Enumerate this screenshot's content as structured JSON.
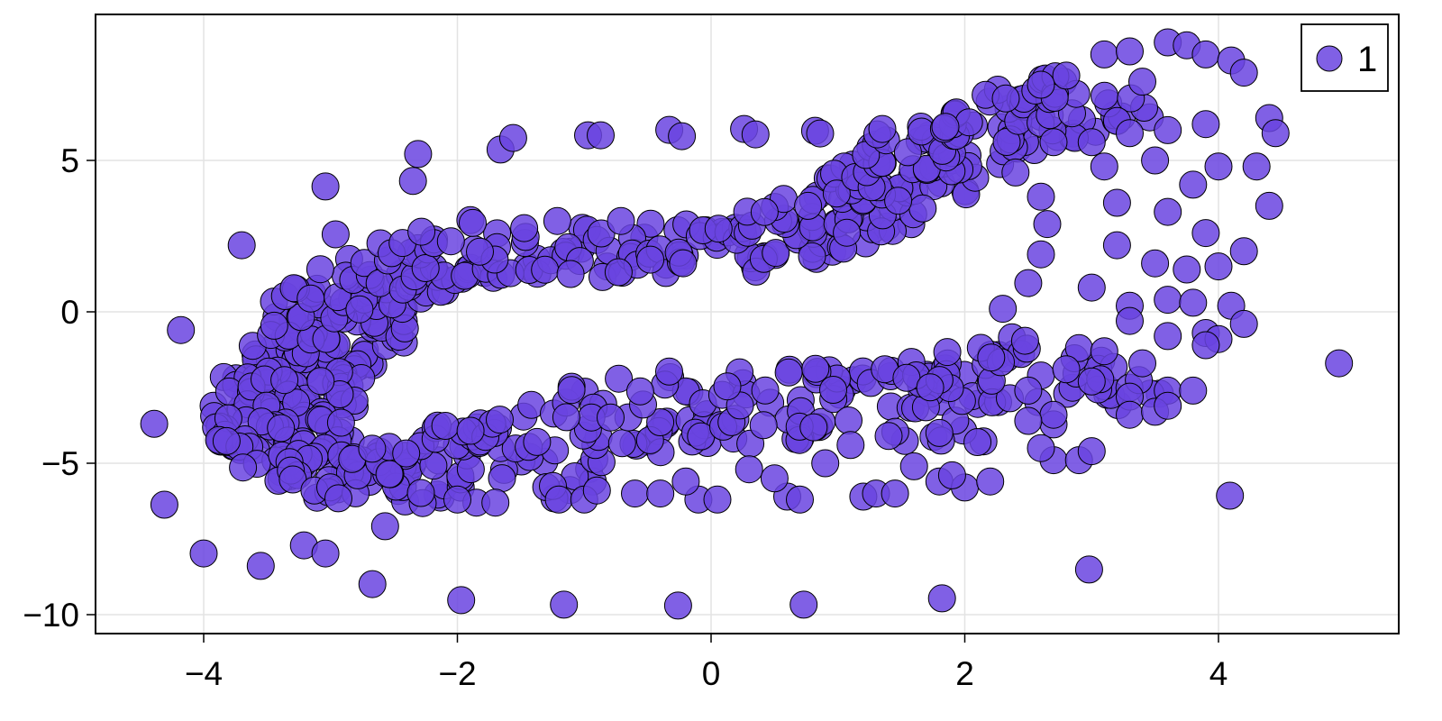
{
  "chart_data": {
    "type": "scatter",
    "title": "",
    "xlabel": "",
    "ylabel": "",
    "xlim": [
      -4.8,
      5.45
    ],
    "ylim": [
      -10.7,
      9.75
    ],
    "xticks": [
      -4,
      -2,
      0,
      2,
      4
    ],
    "xtick_labels": [
      "−4",
      "−2",
      "0",
      "2",
      "4"
    ],
    "yticks": [
      5,
      0,
      -5,
      -10
    ],
    "ytick_labels": [
      "5",
      "0",
      "−5",
      "−10"
    ],
    "grid": true,
    "legend": {
      "position": "top-right",
      "entries": [
        {
          "label": "1",
          "marker": "circle",
          "color": "#6a44e0"
        }
      ]
    },
    "marker": {
      "shape": "circle",
      "color": "#6a44e0",
      "alpha": 0.85,
      "stroke": "#000000",
      "radius_px": 15
    },
    "series": [
      {
        "name": "1",
        "outliers": [
          [
            -4.18,
            -0.6
          ],
          [
            -4.39,
            -3.7
          ],
          [
            -4.31,
            -6.37
          ],
          [
            -4.0,
            -7.98
          ],
          [
            -3.55,
            -8.39
          ],
          [
            -3.21,
            -7.71
          ],
          [
            -3.04,
            -7.98
          ],
          [
            -2.57,
            -7.08
          ],
          [
            -2.67,
            -8.99
          ],
          [
            -1.97,
            -9.52
          ],
          [
            -1.16,
            -9.67
          ],
          [
            -0.26,
            -9.7
          ],
          [
            0.73,
            -9.67
          ],
          [
            1.82,
            -9.46
          ],
          [
            2.98,
            -8.51
          ],
          [
            4.09,
            -6.07
          ],
          [
            4.95,
            -1.7
          ],
          [
            -3.7,
            2.2
          ],
          [
            -3.04,
            4.14
          ],
          [
            -2.96,
            2.56
          ],
          [
            -2.35,
            4.32
          ],
          [
            -2.31,
            5.21
          ],
          [
            -1.66,
            5.36
          ],
          [
            -1.56,
            5.74
          ],
          [
            -0.97,
            5.83
          ],
          [
            -0.87,
            5.83
          ],
          [
            -0.33,
            6.01
          ],
          [
            -0.23,
            5.8
          ],
          [
            0.26,
            6.04
          ],
          [
            0.35,
            5.86
          ],
          [
            0.82,
            5.98
          ],
          [
            0.86,
            5.89
          ],
          [
            1.31,
            5.86
          ],
          [
            1.35,
            6.04
          ]
        ],
        "upper_band": {
          "description": "dense band from left loop rising to upper right",
          "centerline": [
            [
              -3.0,
              -1.0
            ],
            [
              -2.9,
              0.2
            ],
            [
              -2.7,
              0.8
            ],
            [
              -2.4,
              1.4
            ],
            [
              -2.0,
              1.9
            ],
            [
              -1.5,
              2.2
            ],
            [
              -1.0,
              2.2
            ],
            [
              -0.5,
              2.1
            ],
            [
              0.0,
              2.0
            ],
            [
              0.4,
              2.2
            ],
            [
              0.8,
              2.8
            ],
            [
              1.2,
              3.6
            ],
            [
              1.6,
              4.6
            ],
            [
              2.0,
              5.6
            ],
            [
              2.4,
              6.3
            ],
            [
              2.8,
              6.8
            ],
            [
              3.2,
              7.2
            ]
          ],
          "half_width": 0.6
        },
        "left_loop": {
          "centerline": [
            [
              -3.0,
              -1.0
            ],
            [
              -3.3,
              -2.0
            ],
            [
              -3.4,
              -3.5
            ],
            [
              -3.3,
              -4.6
            ],
            [
              -3.0,
              -5.4
            ],
            [
              -2.6,
              -5.6
            ],
            [
              -2.0,
              -5.3
            ]
          ],
          "half_width": 0.55
        },
        "lower_band": {
          "centerline": [
            [
              -2.0,
              -5.3
            ],
            [
              -1.5,
              -4.6
            ],
            [
              -1.0,
              -3.8
            ],
            [
              -0.5,
              -3.3
            ],
            [
              0.0,
              -3.1
            ],
            [
              0.5,
              -3.2
            ],
            [
              1.0,
              -3.3
            ],
            [
              1.5,
              -3.1
            ],
            [
              2.0,
              -2.9
            ],
            [
              2.5,
              -2.2
            ],
            [
              3.0,
              -1.5
            ]
          ],
          "half_width": 0.9
        },
        "right_cluster": {
          "description": "scattered loop-like points at x 2.5-4.5, y -4 to 9",
          "sample_points": [
            [
              3.1,
              8.5
            ],
            [
              3.3,
              8.6
            ],
            [
              3.6,
              8.9
            ],
            [
              3.75,
              8.8
            ],
            [
              3.9,
              8.5
            ],
            [
              2.8,
              7.8
            ],
            [
              2.6,
              7.5
            ],
            [
              3.4,
              7.6
            ],
            [
              4.1,
              8.3
            ],
            [
              4.2,
              7.9
            ],
            [
              3.2,
              6.3
            ],
            [
              3.6,
              6.0
            ],
            [
              3.9,
              6.2
            ],
            [
              4.4,
              6.4
            ],
            [
              4.45,
              5.9
            ],
            [
              2.7,
              5.6
            ],
            [
              3.1,
              4.8
            ],
            [
              3.5,
              5.0
            ],
            [
              3.8,
              4.2
            ],
            [
              4.0,
              4.8
            ],
            [
              4.3,
              4.8
            ],
            [
              4.4,
              3.5
            ],
            [
              3.2,
              3.6
            ],
            [
              3.6,
              3.3
            ],
            [
              3.9,
              2.6
            ],
            [
              4.2,
              2.0
            ],
            [
              3.2,
              2.2
            ],
            [
              3.5,
              1.6
            ],
            [
              3.75,
              1.4
            ],
            [
              4.0,
              1.5
            ],
            [
              3.0,
              0.8
            ],
            [
              3.3,
              0.2
            ],
            [
              3.6,
              0.4
            ],
            [
              3.8,
              0.3
            ],
            [
              4.1,
              0.2
            ],
            [
              4.2,
              -0.4
            ],
            [
              3.9,
              -0.7
            ],
            [
              3.6,
              -0.8
            ],
            [
              3.3,
              -0.3
            ],
            [
              4.0,
              -0.9
            ],
            [
              2.9,
              -1.2
            ],
            [
              3.1,
              -1.3
            ],
            [
              3.4,
              -1.7
            ],
            [
              3.9,
              -1.1
            ],
            [
              2.6,
              -2.1
            ],
            [
              2.8,
              -1.9
            ],
            [
              3.0,
              -2.3
            ],
            [
              3.3,
              -2.8
            ],
            [
              3.6,
              -2.6
            ],
            [
              3.8,
              -2.6
            ],
            [
              3.3,
              -3.4
            ],
            [
              3.5,
              -3.3
            ],
            [
              3.6,
              -3.1
            ],
            [
              2.7,
              -3.4
            ],
            [
              2.5,
              -3.6
            ],
            [
              2.7,
              -4.9
            ],
            [
              2.9,
              -4.9
            ],
            [
              3.0,
              -4.6
            ],
            [
              2.6,
              -4.5
            ],
            [
              2.5,
              -2.6
            ],
            [
              2.3,
              0.1
            ],
            [
              2.5,
              0.95
            ],
            [
              2.6,
              1.9
            ],
            [
              2.65,
              2.9
            ],
            [
              2.6,
              3.8
            ],
            [
              2.4,
              4.6
            ],
            [
              3.0,
              5.6
            ],
            [
              3.3,
              5.9
            ]
          ]
        },
        "lower_scatter_points": [
          [
            -0.6,
            -6.0
          ],
          [
            -0.4,
            -6.0
          ],
          [
            -0.1,
            -6.2
          ],
          [
            0.05,
            -6.2
          ],
          [
            0.6,
            -6.1
          ],
          [
            0.7,
            -6.2
          ],
          [
            1.2,
            -6.1
          ],
          [
            1.3,
            -6.0
          ],
          [
            1.45,
            -6.0
          ],
          [
            1.8,
            -5.6
          ],
          [
            2.0,
            -5.8
          ],
          [
            2.2,
            -5.6
          ],
          [
            -1.2,
            -6.2
          ],
          [
            -1.0,
            -6.2
          ],
          [
            -0.9,
            -5.9
          ],
          [
            -0.2,
            -5.6
          ],
          [
            0.3,
            -5.2
          ],
          [
            0.5,
            -5.5
          ],
          [
            0.9,
            -5.0
          ],
          [
            1.1,
            -4.4
          ],
          [
            1.4,
            -4.1
          ],
          [
            1.8,
            -4.0
          ],
          [
            2.1,
            -4.3
          ],
          [
            1.6,
            -5.1
          ],
          [
            1.9,
            -5.4
          ],
          [
            -1.85,
            -6.3
          ],
          [
            -1.7,
            -6.3
          ],
          [
            -2.0,
            -6.2
          ]
        ]
      }
    ]
  },
  "legend": {
    "label": "1"
  },
  "axes": {
    "xtick_labels": [
      "−4",
      "−2",
      "0",
      "2",
      "4"
    ],
    "ytick_labels": [
      "5",
      "0",
      "−5",
      "−10"
    ]
  }
}
